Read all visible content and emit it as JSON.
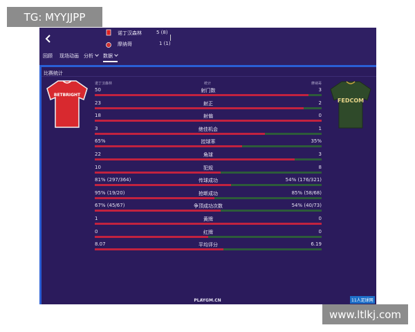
{
  "watermark": "TG: MYYJJPP",
  "header": {
    "home_team": "诺丁汉森林",
    "home_score": "5 (8)",
    "away_team": "摩纳哥",
    "away_score": "1 (1)"
  },
  "tabs": [
    "回顾",
    "现场动画",
    "分析",
    "数据"
  ],
  "section_title": "比赛统计",
  "columns": {
    "home": "诺丁汉森林",
    "stat": "统计",
    "away": "摩纳哥"
  },
  "stats": [
    {
      "home": 50,
      "label": "射门数",
      "away": 3
    },
    {
      "home": 23,
      "label": "射正",
      "away": 2
    },
    {
      "home": 18,
      "label": "射偏",
      "away": 0
    },
    {
      "home": 3,
      "label": "绝佳机会",
      "away": 1
    },
    {
      "home": "65%",
      "label": "控球率",
      "away": "35%"
    },
    {
      "home": 22,
      "label": "角球",
      "away": 3
    },
    {
      "home": 10,
      "label": "犯规",
      "away": 8
    },
    {
      "home": "81% (297/364)",
      "label": "传球成功",
      "away": "54% (176/321)"
    },
    {
      "home": "95% (19/20)",
      "label": "抢断成功",
      "away": "85% (58/68)"
    },
    {
      "home": "67% (45/67)",
      "label": "争顶成功次数",
      "away": "54% (40/73)"
    },
    {
      "home": 1,
      "label": "黄牌",
      "away": 0
    },
    {
      "home": 0,
      "label": "红牌",
      "away": 0
    },
    {
      "home": 8.07,
      "label": "平均评分",
      "away": 6.19
    }
  ],
  "jerseys": {
    "home_sponsor": "BETBRIGHT",
    "away_sponsor": "FEDCOM"
  },
  "footer": "PLAYGM.CN",
  "logo": "11人足球网",
  "site_watermark": "www.ltlkj.com"
}
